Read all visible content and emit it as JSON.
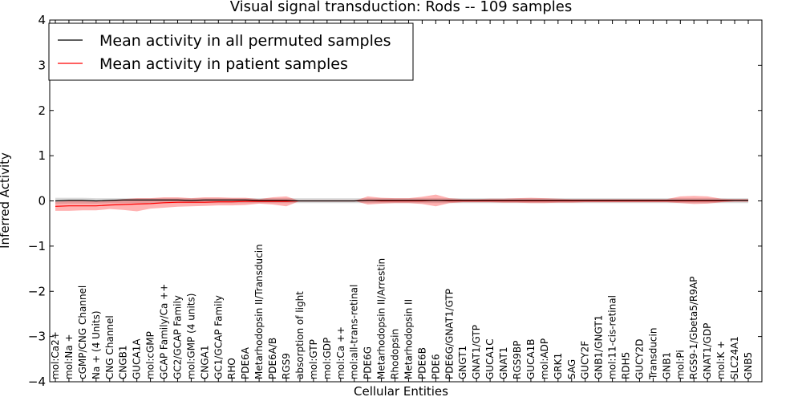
{
  "chart_data": {
    "type": "line",
    "title": "Visual signal transduction: Rods -- 109 samples",
    "xlabel": "Cellular Entities",
    "ylabel": "Inferred Activity",
    "ylim": [
      -4,
      4
    ],
    "yticks": [
      4,
      3,
      2,
      1,
      0,
      -1,
      -2,
      -3,
      -4
    ],
    "ytick_labels": [
      "4",
      "3",
      "2",
      "1",
      "0",
      "−1",
      "−2",
      "−3",
      "−4"
    ],
    "legend_position": "top-left",
    "categories": [
      "mol:Ca2+",
      "mol:Na +",
      "cGMP/CNG Channel",
      "Na + (4 Units)",
      "CNG Channel",
      "CNGB1",
      "GUCA1A",
      "mol:cGMP",
      "GCAP Family/Ca ++",
      "GC2/GCAP Family",
      "mol:GMP (4 units)",
      "CNGA1",
      "GC1/GCAP Family",
      "RHO",
      "PDE6A",
      "Metarhodopsin II/Transducin",
      "PDE6A/B",
      "RGS9",
      "absorption of light",
      "mol:GTP",
      "mol:GDP",
      "mol:Ca ++",
      "mol:all-trans-retinal",
      "PDE6G",
      "Metarhodopsin II/Arrestin",
      "Rhodopsin",
      "Metarhodopsin II",
      "PDE6B",
      "PDE6",
      "PDE6G/GNAT1/GTP",
      "GNGT1",
      "GNAT1/GTP",
      "GUCA1C",
      "GNAT1",
      "RGS9BP",
      "GUCA1B",
      "mol:ADP",
      "GRK1",
      "SAG",
      "GUCY2F",
      "GNB1/GNGT1",
      "mol:11-cis-retinal",
      "RDH5",
      "GUCY2D",
      "Transducin",
      "GNB1",
      "mol:Pi",
      "RGS9-1/Gbeta5/R9AP",
      "GNAT1/GDP",
      "mol:K +",
      "SLC24A1",
      "GNB5"
    ],
    "series": [
      {
        "name": "Mean activity in all permuted samples",
        "color": "#000000",
        "values": [
          0.0,
          0.01,
          0.01,
          0.0,
          0.01,
          0.02,
          0.02,
          0.02,
          0.02,
          0.02,
          0.01,
          0.02,
          0.02,
          0.02,
          0.02,
          0.01,
          0.01,
          0.01,
          0.0,
          0.0,
          0.0,
          0.0,
          0.0,
          0.01,
          0.01,
          0.01,
          0.01,
          0.01,
          0.01,
          0.01,
          0.01,
          0.01,
          0.01,
          0.01,
          0.01,
          0.01,
          0.01,
          0.01,
          0.01,
          0.01,
          0.01,
          0.01,
          0.01,
          0.01,
          0.01,
          0.01,
          0.01,
          0.01,
          0.01,
          0.01,
          0.01,
          0.01
        ],
        "band_lower": [
          -0.07,
          -0.06,
          -0.06,
          -0.06,
          -0.05,
          -0.05,
          -0.05,
          -0.05,
          -0.05,
          -0.05,
          -0.05,
          -0.05,
          -0.05,
          -0.05,
          -0.05,
          -0.05,
          -0.05,
          -0.05,
          -0.05,
          -0.05,
          -0.05,
          -0.05,
          -0.05,
          -0.05,
          -0.05,
          -0.05,
          -0.05,
          -0.05,
          -0.05,
          -0.05,
          -0.05,
          -0.05,
          -0.05,
          -0.05,
          -0.05,
          -0.05,
          -0.05,
          -0.05,
          -0.05,
          -0.05,
          -0.05,
          -0.05,
          -0.05,
          -0.05,
          -0.05,
          -0.05,
          -0.05,
          -0.05,
          -0.05,
          -0.05,
          -0.05,
          -0.05
        ],
        "band_upper": [
          0.07,
          0.07,
          0.07,
          0.06,
          0.06,
          0.06,
          0.06,
          0.06,
          0.06,
          0.06,
          0.06,
          0.06,
          0.06,
          0.06,
          0.06,
          0.06,
          0.06,
          0.06,
          0.06,
          0.06,
          0.06,
          0.06,
          0.06,
          0.06,
          0.06,
          0.06,
          0.06,
          0.06,
          0.06,
          0.06,
          0.06,
          0.06,
          0.06,
          0.06,
          0.06,
          0.06,
          0.06,
          0.06,
          0.06,
          0.06,
          0.06,
          0.06,
          0.06,
          0.06,
          0.06,
          0.06,
          0.06,
          0.06,
          0.06,
          0.06,
          0.06,
          0.06
        ]
      },
      {
        "name": "Mean activity in patient samples",
        "color": "#ff0000",
        "values": [
          -0.12,
          -0.11,
          -0.11,
          -0.11,
          -0.09,
          -0.08,
          -0.07,
          -0.06,
          -0.04,
          -0.03,
          -0.03,
          -0.03,
          -0.02,
          -0.02,
          -0.01,
          -0.01,
          -0.01,
          -0.01,
          0.0,
          0.0,
          0.0,
          0.0,
          0.0,
          0.01,
          0.0,
          0.0,
          0.0,
          0.0,
          0.01,
          0.0,
          0.0,
          0.0,
          0.0,
          0.0,
          0.0,
          0.0,
          0.0,
          0.0,
          0.0,
          0.0,
          0.0,
          0.0,
          0.0,
          0.0,
          0.0,
          0.0,
          0.0,
          0.0,
          0.0,
          0.0,
          0.01,
          0.01
        ],
        "band_lower": [
          -0.22,
          -0.22,
          -0.21,
          -0.21,
          -0.18,
          -0.2,
          -0.23,
          -0.17,
          -0.15,
          -0.13,
          -0.12,
          -0.11,
          -0.1,
          -0.1,
          -0.09,
          -0.06,
          -0.08,
          -0.12,
          0.0,
          0.0,
          0.0,
          0.0,
          0.0,
          -0.08,
          -0.06,
          -0.05,
          -0.05,
          -0.07,
          -0.12,
          -0.05,
          -0.03,
          -0.03,
          -0.03,
          -0.04,
          -0.04,
          -0.05,
          -0.05,
          -0.04,
          -0.04,
          -0.03,
          -0.03,
          -0.03,
          -0.03,
          -0.03,
          -0.03,
          -0.03,
          -0.05,
          -0.07,
          -0.06,
          -0.03,
          -0.02,
          -0.02
        ],
        "band_upper": [
          -0.02,
          0.0,
          0.0,
          -0.01,
          0.02,
          0.04,
          0.06,
          0.06,
          0.08,
          0.08,
          0.06,
          0.08,
          0.08,
          0.07,
          0.07,
          0.04,
          0.08,
          0.1,
          0.0,
          0.0,
          0.0,
          0.0,
          0.0,
          0.1,
          0.07,
          0.06,
          0.06,
          0.09,
          0.14,
          0.06,
          0.04,
          0.04,
          0.05,
          0.05,
          0.06,
          0.07,
          0.06,
          0.05,
          0.04,
          0.04,
          0.04,
          0.04,
          0.04,
          0.04,
          0.04,
          0.04,
          0.1,
          0.11,
          0.1,
          0.05,
          0.04,
          0.04
        ]
      }
    ]
  }
}
